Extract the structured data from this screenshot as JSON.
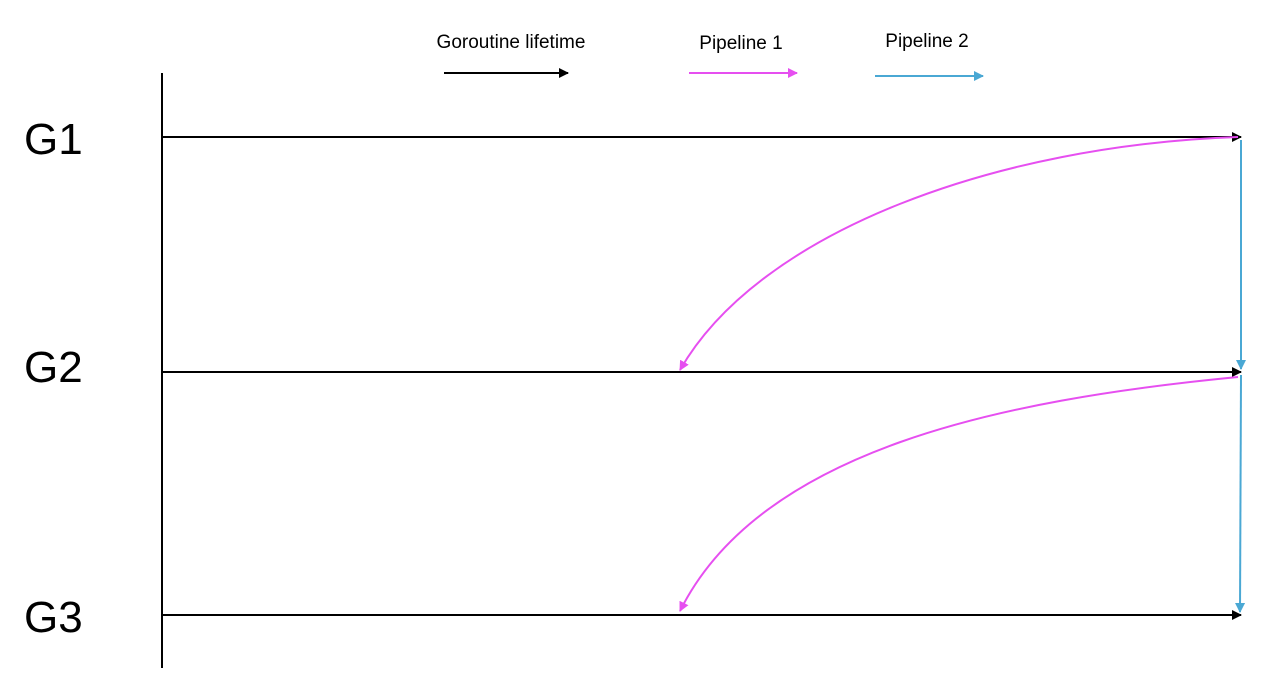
{
  "legend": {
    "lifetime": {
      "label": "Goroutine lifetime",
      "color": "#000000"
    },
    "pipeline1": {
      "label": "Pipeline 1",
      "color": "#e64ff0"
    },
    "pipeline2": {
      "label": "Pipeline 2",
      "color": "#4aa8d4"
    }
  },
  "goroutines": [
    {
      "label": "G1"
    },
    {
      "label": "G2"
    },
    {
      "label": "G3"
    }
  ]
}
